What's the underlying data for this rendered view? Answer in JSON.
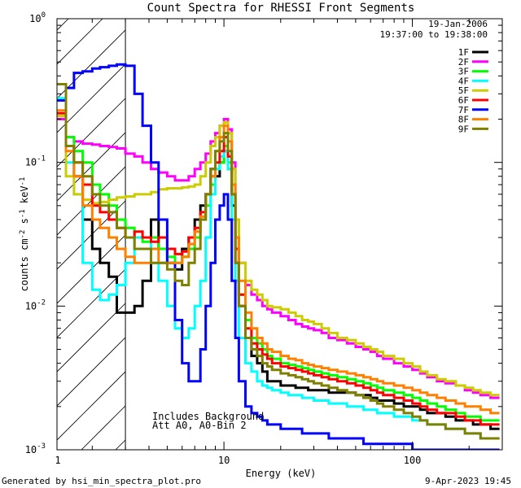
{
  "chart_data": {
    "type": "line",
    "title": "Count Spectra for RHESSI Front Segments",
    "xlabel": "Energy (keV)",
    "ylabel": "counts cm-2 s-1 keV-1",
    "xscale": "log",
    "yscale": "log",
    "xlim": [
      1.3,
      300
    ],
    "ylim": [
      0.001,
      1
    ],
    "x_tick_labels": [
      "1",
      "10",
      "100"
    ],
    "y_tick_labels": [
      "10^-3",
      "10^-2",
      "10^-1",
      "10^0"
    ],
    "date": "19-Jan-2006",
    "time_range": "19:37:00 to 19:38:00",
    "attenuator_threshold_keV": 3,
    "annotations": [
      "Includes Background",
      "Att A0, A0-Bin 2"
    ],
    "energy_bins_keV": [
      1.3,
      1.45,
      1.6,
      1.78,
      2.0,
      2.2,
      2.45,
      2.7,
      3.0,
      3.35,
      3.7,
      4.1,
      4.5,
      5.0,
      5.5,
      6.0,
      6.5,
      7.0,
      7.5,
      8.0,
      8.5,
      9.0,
      9.5,
      10.0,
      10.5,
      11.0,
      11.5,
      12.0,
      13.0,
      14.0,
      15.0,
      16.0,
      17.0,
      18.0,
      20.0,
      22.0,
      24.0,
      26.0,
      28.0,
      30.0,
      33.0,
      36.0,
      40.0,
      45.0,
      50.0,
      55.0,
      60.0,
      65.0,
      70.0,
      80.0,
      90.0,
      100.0,
      110.0,
      120.0,
      135.0,
      150.0,
      170.0,
      190.0,
      210.0,
      230.0,
      260.0,
      290.0
    ],
    "series": [
      {
        "name": "1F",
        "color": "#000000",
        "values": [
          0.2,
          0.13,
          0.08,
          0.04,
          0.025,
          0.02,
          0.016,
          0.009,
          0.009,
          0.01,
          0.015,
          0.04,
          0.025,
          0.02,
          0.018,
          0.025,
          0.03,
          0.04,
          0.05,
          0.06,
          0.09,
          0.08,
          0.1,
          0.12,
          0.09,
          0.05,
          0.02,
          0.01,
          0.006,
          0.0045,
          0.004,
          0.0035,
          0.003,
          0.003,
          0.0028,
          0.0028,
          0.0027,
          0.0027,
          0.0026,
          0.0026,
          0.0026,
          0.0025,
          0.0025,
          0.0025,
          0.0024,
          0.0024,
          0.0023,
          0.0022,
          0.0022,
          0.0021,
          0.002,
          0.002,
          0.0019,
          0.0018,
          0.0018,
          0.0017,
          0.0016,
          0.0016,
          0.0015,
          0.0015,
          0.0014,
          0.0014
        ]
      },
      {
        "name": "2F",
        "color": "#ff00ff",
        "values": [
          0.2,
          0.15,
          0.14,
          0.135,
          0.133,
          0.13,
          0.128,
          0.125,
          0.115,
          0.11,
          0.1,
          0.09,
          0.085,
          0.08,
          0.075,
          0.075,
          0.08,
          0.09,
          0.1,
          0.115,
          0.14,
          0.16,
          0.18,
          0.2,
          0.17,
          0.1,
          0.04,
          0.02,
          0.014,
          0.012,
          0.011,
          0.01,
          0.0095,
          0.009,
          0.0085,
          0.008,
          0.0075,
          0.0072,
          0.007,
          0.0068,
          0.0065,
          0.006,
          0.0058,
          0.0055,
          0.0052,
          0.005,
          0.0048,
          0.0045,
          0.0043,
          0.004,
          0.0038,
          0.0036,
          0.0034,
          0.0032,
          0.003,
          0.0029,
          0.0028,
          0.0026,
          0.0025,
          0.0024,
          0.0023,
          0.0022
        ]
      },
      {
        "name": "3F",
        "color": "#00ff00",
        "values": [
          0.21,
          0.15,
          0.12,
          0.1,
          0.07,
          0.06,
          0.05,
          0.04,
          0.035,
          0.03,
          0.028,
          0.03,
          0.025,
          0.022,
          0.02,
          0.022,
          0.025,
          0.03,
          0.04,
          0.05,
          0.07,
          0.09,
          0.1,
          0.13,
          0.1,
          0.06,
          0.025,
          0.012,
          0.008,
          0.006,
          0.0055,
          0.005,
          0.0045,
          0.0043,
          0.004,
          0.0039,
          0.0038,
          0.0037,
          0.0036,
          0.0035,
          0.0034,
          0.0033,
          0.0032,
          0.0031,
          0.003,
          0.0029,
          0.0028,
          0.0027,
          0.0026,
          0.0025,
          0.0024,
          0.0023,
          0.0022,
          0.0021,
          0.002,
          0.0019,
          0.0018,
          0.0017,
          0.0017,
          0.0016,
          0.0016,
          0.0015
        ]
      },
      {
        "name": "4F",
        "color": "#00ffff",
        "values": [
          0.28,
          0.1,
          0.06,
          0.02,
          0.013,
          0.011,
          0.012,
          0.014,
          0.02,
          0.03,
          0.03,
          0.02,
          0.015,
          0.01,
          0.007,
          0.006,
          0.007,
          0.01,
          0.015,
          0.03,
          0.06,
          0.09,
          0.11,
          0.12,
          0.09,
          0.04,
          0.015,
          0.006,
          0.004,
          0.0035,
          0.003,
          0.0028,
          0.0027,
          0.0026,
          0.0025,
          0.0024,
          0.0024,
          0.0023,
          0.0023,
          0.0022,
          0.0022,
          0.0021,
          0.0021,
          0.002,
          0.002,
          0.0019,
          0.0019,
          0.0018,
          0.0018,
          0.0017,
          0.0017,
          0.0016,
          0.0016,
          0.0015,
          0.0015,
          0.0014,
          0.0014,
          0.0013,
          0.0013,
          0.0012,
          0.0012,
          0.0012
        ]
      },
      {
        "name": "5F",
        "color": "#cccc00",
        "values": [
          0.21,
          0.08,
          0.06,
          0.055,
          0.052,
          0.053,
          0.055,
          0.057,
          0.058,
          0.06,
          0.06,
          0.062,
          0.065,
          0.066,
          0.066,
          0.067,
          0.068,
          0.07,
          0.08,
          0.1,
          0.13,
          0.15,
          0.18,
          0.19,
          0.16,
          0.09,
          0.04,
          0.02,
          0.015,
          0.013,
          0.012,
          0.011,
          0.01,
          0.0098,
          0.0095,
          0.009,
          0.0085,
          0.008,
          0.0078,
          0.0075,
          0.007,
          0.0065,
          0.006,
          0.0058,
          0.0055,
          0.0052,
          0.005,
          0.0048,
          0.0045,
          0.0043,
          0.004,
          0.0038,
          0.0035,
          0.0033,
          0.0031,
          0.003,
          0.0028,
          0.0027,
          0.0026,
          0.0025,
          0.0024,
          0.0023
        ]
      },
      {
        "name": "6F",
        "color": "#ff0000",
        "values": [
          0.22,
          0.13,
          0.1,
          0.07,
          0.05,
          0.045,
          0.04,
          0.035,
          0.03,
          0.033,
          0.03,
          0.028,
          0.03,
          0.025,
          0.023,
          0.024,
          0.03,
          0.035,
          0.045,
          0.06,
          0.08,
          0.1,
          0.12,
          0.15,
          0.11,
          0.06,
          0.025,
          0.012,
          0.007,
          0.0055,
          0.005,
          0.0046,
          0.0043,
          0.004,
          0.0038,
          0.0037,
          0.0036,
          0.0035,
          0.0034,
          0.0033,
          0.0032,
          0.0031,
          0.003,
          0.0029,
          0.0028,
          0.0027,
          0.0026,
          0.0025,
          0.0024,
          0.0023,
          0.0022,
          0.0021,
          0.002,
          0.0019,
          0.0018,
          0.0018,
          0.0017,
          0.0016,
          0.0016,
          0.0015,
          0.0015,
          0.0014
        ]
      },
      {
        "name": "7F",
        "color": "#0000ff",
        "values": [
          0.27,
          0.33,
          0.42,
          0.43,
          0.45,
          0.46,
          0.47,
          0.48,
          0.47,
          0.3,
          0.18,
          0.1,
          0.04,
          0.02,
          0.008,
          0.004,
          0.003,
          0.003,
          0.005,
          0.01,
          0.02,
          0.04,
          0.05,
          0.06,
          0.04,
          0.015,
          0.006,
          0.003,
          0.002,
          0.0018,
          0.0017,
          0.0016,
          0.0015,
          0.0015,
          0.0014,
          0.0014,
          0.0014,
          0.0013,
          0.0013,
          0.0013,
          0.0013,
          0.0012,
          0.0012,
          0.0012,
          0.0012,
          0.0011,
          0.0011,
          0.0011,
          0.0011,
          0.0011,
          0.0011,
          0.001,
          0.001,
          0.001,
          0.001,
          0.001,
          0.001,
          0.001,
          0.001,
          0.001,
          0.001,
          0.001
        ]
      },
      {
        "name": "8F",
        "color": "#ff8000",
        "values": [
          0.23,
          0.12,
          0.08,
          0.05,
          0.04,
          0.035,
          0.03,
          0.025,
          0.022,
          0.02,
          0.02,
          0.025,
          0.02,
          0.02,
          0.02,
          0.022,
          0.027,
          0.033,
          0.042,
          0.06,
          0.08,
          0.12,
          0.15,
          0.18,
          0.14,
          0.07,
          0.03,
          0.015,
          0.009,
          0.007,
          0.006,
          0.0055,
          0.005,
          0.0048,
          0.0045,
          0.0043,
          0.0042,
          0.004,
          0.0039,
          0.0038,
          0.0037,
          0.0036,
          0.0035,
          0.0034,
          0.0033,
          0.0032,
          0.0031,
          0.003,
          0.0029,
          0.0028,
          0.0027,
          0.0026,
          0.0025,
          0.0024,
          0.0023,
          0.0022,
          0.0021,
          0.002,
          0.002,
          0.0019,
          0.0018,
          0.0018
        ]
      },
      {
        "name": "9F",
        "color": "#808000",
        "values": [
          0.35,
          0.13,
          0.1,
          0.08,
          0.06,
          0.05,
          0.045,
          0.035,
          0.03,
          0.025,
          0.025,
          0.02,
          0.02,
          0.018,
          0.015,
          0.014,
          0.02,
          0.025,
          0.04,
          0.06,
          0.09,
          0.12,
          0.14,
          0.16,
          0.12,
          0.06,
          0.02,
          0.01,
          0.006,
          0.005,
          0.0045,
          0.004,
          0.0038,
          0.0036,
          0.0034,
          0.0033,
          0.0032,
          0.0031,
          0.003,
          0.0029,
          0.0028,
          0.0027,
          0.0026,
          0.0025,
          0.0024,
          0.0023,
          0.0022,
          0.0021,
          0.002,
          0.0019,
          0.0018,
          0.0017,
          0.0016,
          0.0015,
          0.0015,
          0.0014,
          0.0014,
          0.0013,
          0.0013,
          0.0012,
          0.0012,
          0.0012
        ]
      }
    ]
  },
  "footer": {
    "generated_by": "Generated by hsi_min_spectra_plot.pro",
    "timestamp": "9-Apr-2023 19:45"
  }
}
